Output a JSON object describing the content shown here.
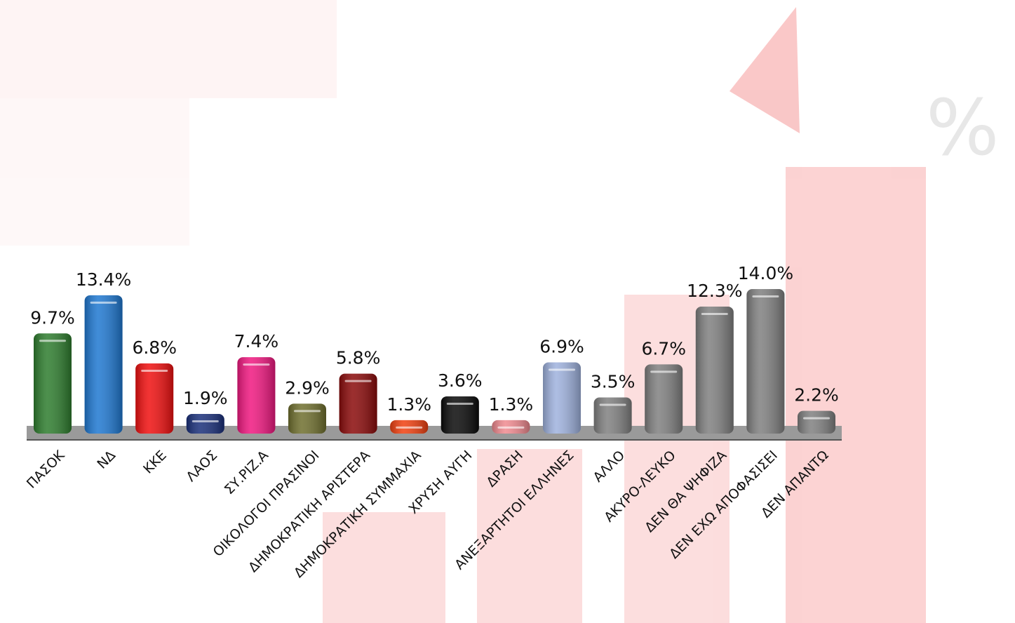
{
  "chart_data": {
    "type": "bar",
    "categories": [
      "ΠΑΣΟΚ",
      "ΝΔ",
      "ΚΚΕ",
      "ΛΑΟΣ",
      "ΣΥ.ΡΙΖ.Α",
      "ΟΙΚΟΛΟΓΟΙ ΠΡΑΣΙΝΟΙ",
      "ΔΗΜΟΚΡΑΤΙΚΗ ΑΡΙΣΤΕΡΑ",
      "ΔΗΜΟΚΡΑΤΙΚΗ ΣΥΜΜΑΧΙΑ",
      "ΧΡΥΣΗ ΑΥΓΗ",
      "ΔΡΑΣΗ",
      "ΑΝΕΞΑΡΤΗΤΟΙ ΕΛΛΗΝΕΣ",
      "ΑΛΛΟ",
      "ΑΚΥΡΟ-ΛΕΥΚΟ",
      "ΔΕΝ ΘΑ ΨΗΦΙΖΑ",
      "ΔΕΝ ΕΧΩ ΑΠΟΦΑΣΙΣΕΙ",
      "ΔΕΝ ΑΠΑΝΤΩ"
    ],
    "values": [
      9.7,
      13.4,
      6.8,
      1.9,
      7.4,
      2.9,
      5.8,
      1.3,
      3.6,
      1.3,
      6.9,
      3.5,
      6.7,
      12.3,
      14.0,
      2.2
    ],
    "value_labels": [
      "9.7%",
      "13.4%",
      "6.8%",
      "1.9%",
      "7.4%",
      "2.9%",
      "5.8%",
      "1.3%",
      "3.6%",
      "1.3%",
      "6.9%",
      "3.5%",
      "6.7%",
      "12.3%",
      "14.0%",
      "2.2%"
    ],
    "colors": [
      "#2e7d2e",
      "#1f78d1",
      "#f01010",
      "#1a2f7a",
      "#f01880",
      "#6f6f2e",
      "#8a0a0a",
      "#f04010",
      "#0a0a0a",
      "#f08a90",
      "#9fb2de",
      "#808080",
      "#808080",
      "#808080",
      "#808080",
      "#808080"
    ]
  }
}
